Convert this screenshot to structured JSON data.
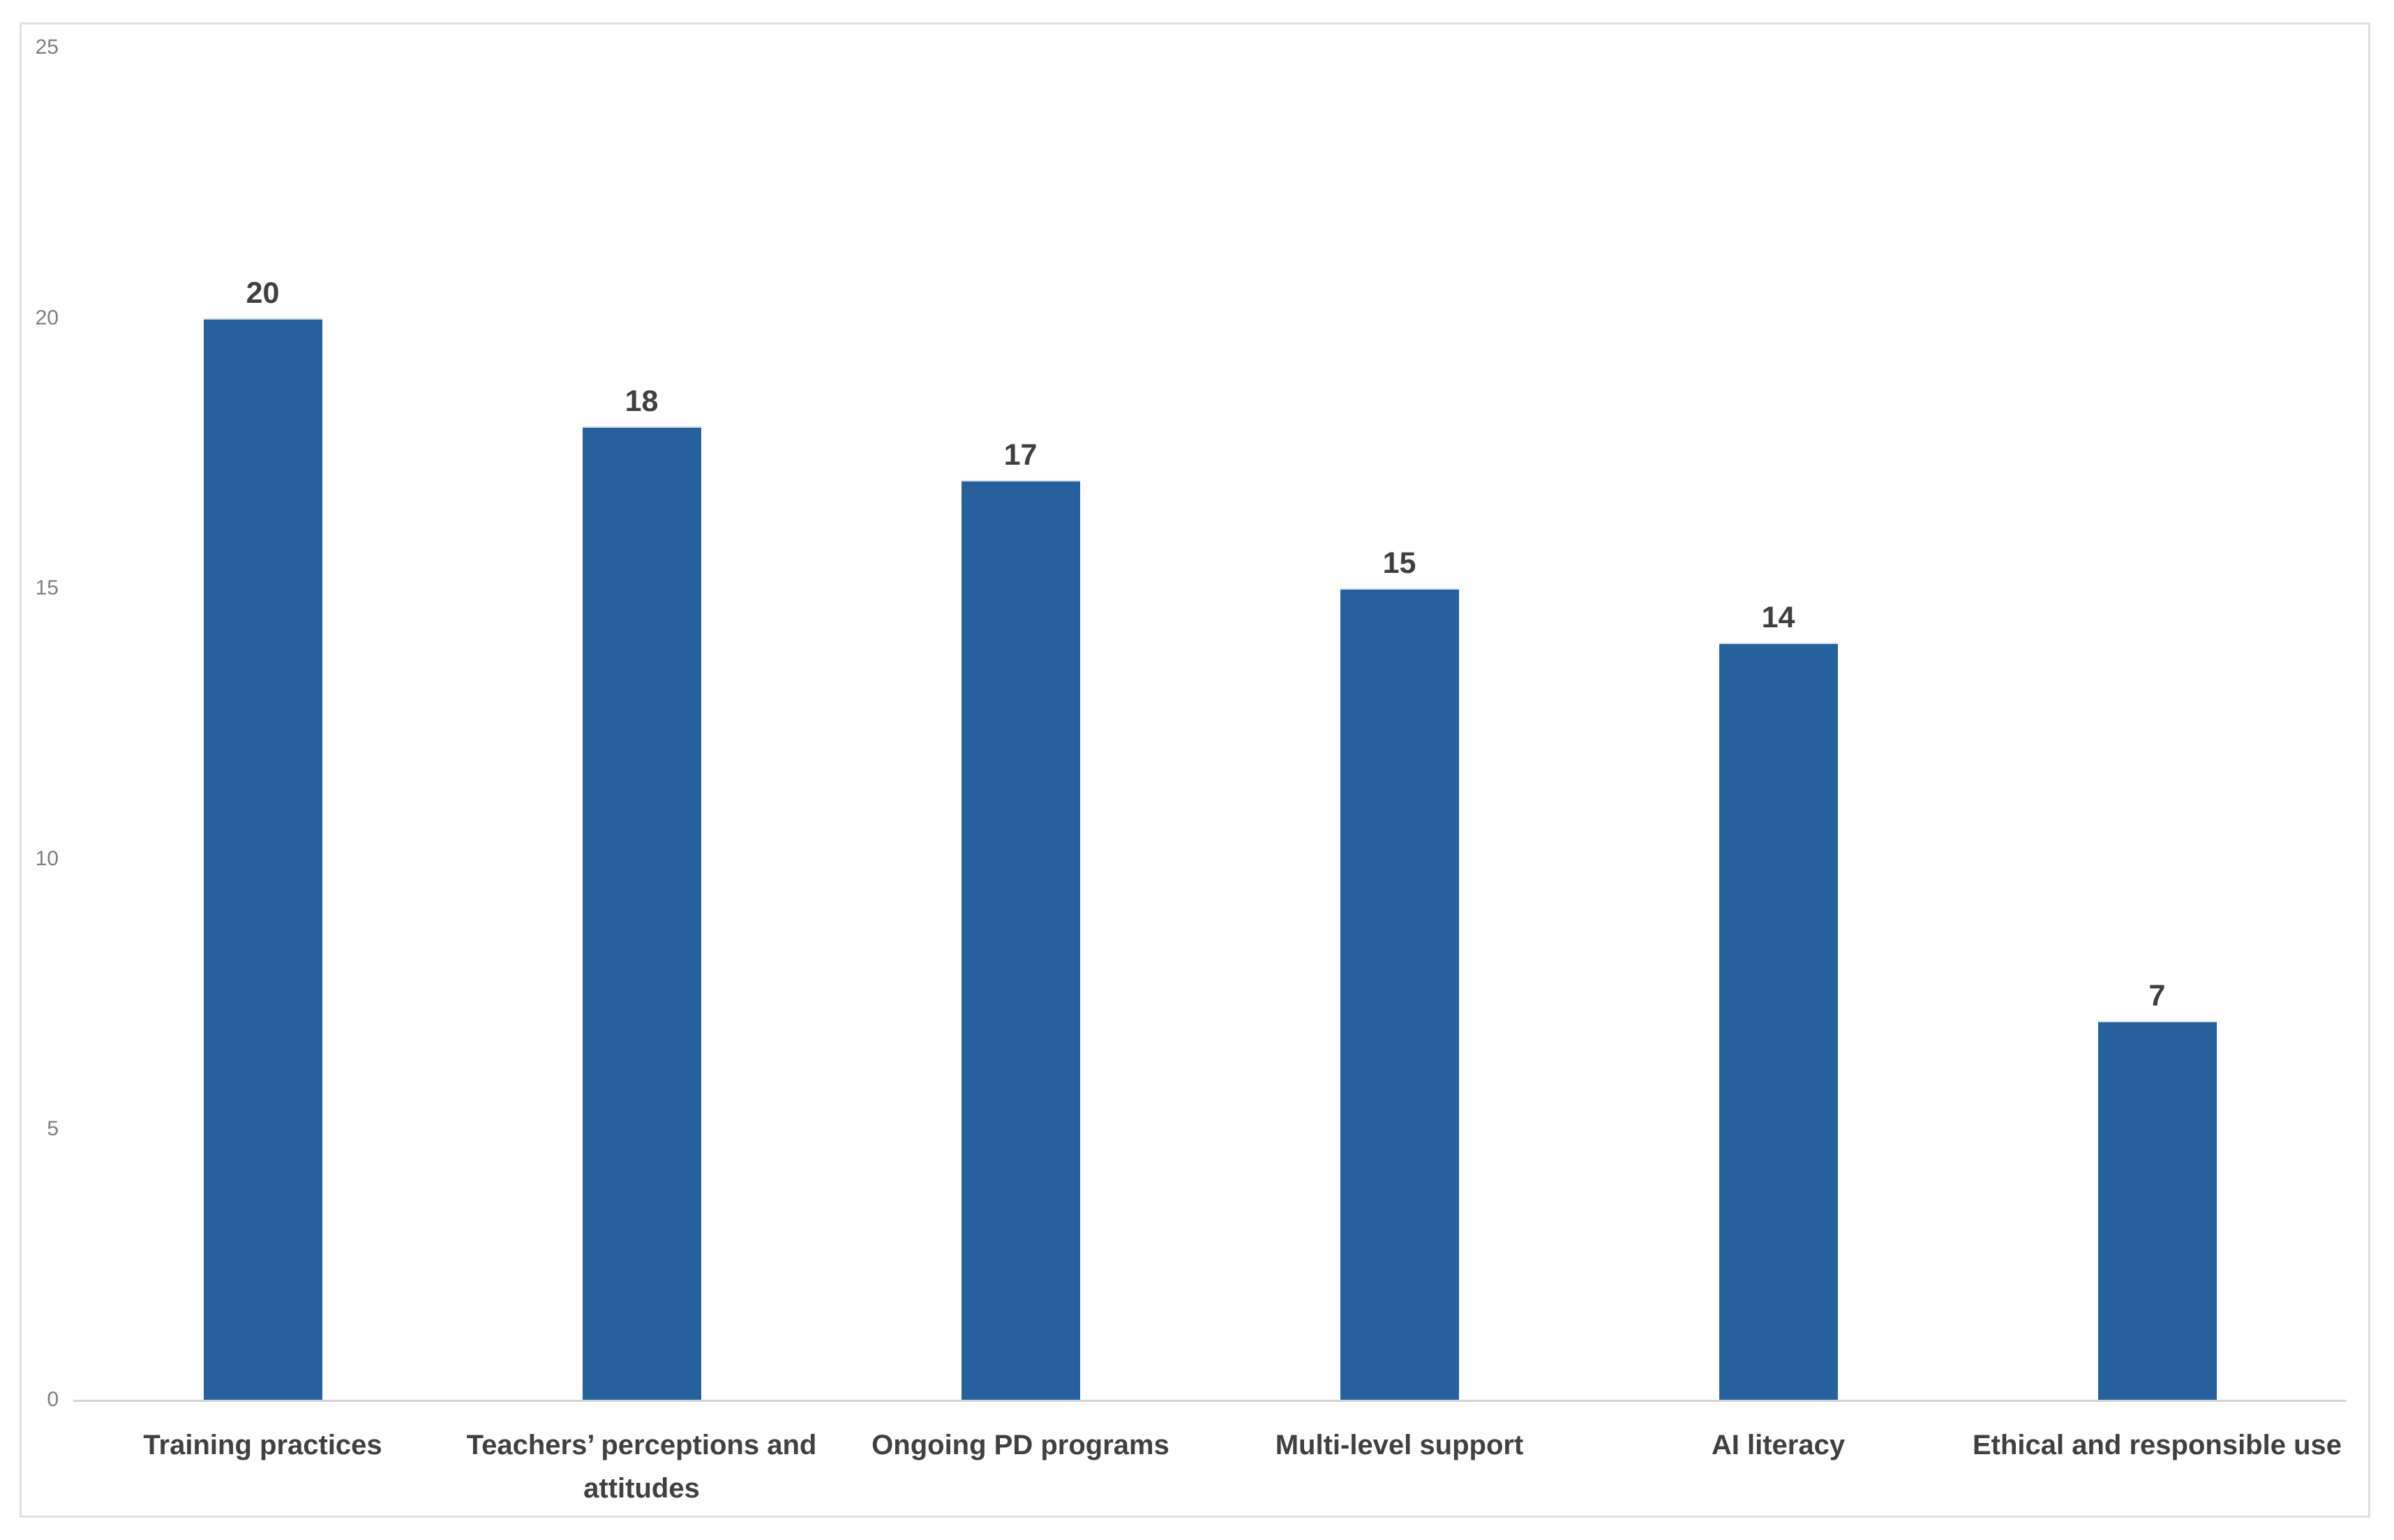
{
  "chart_data": {
    "type": "bar",
    "categories": [
      "Training practices",
      "Teachers’ perceptions and attitudes",
      "Ongoing PD programs",
      "Multi-level support",
      "AI literacy",
      "Ethical and responsible use"
    ],
    "values": [
      20,
      18,
      17,
      15,
      14,
      7
    ],
    "title": "",
    "xlabel": "",
    "ylabel": "",
    "ylim": [
      0,
      25
    ],
    "yticks": [
      0,
      5,
      10,
      15,
      20,
      25
    ],
    "grid": false,
    "legend": false,
    "data_labels_shown": true,
    "colors": {
      "bar": "#26619e",
      "bar_edge": "#d9e2ee",
      "value_label": "#3f3f3f",
      "category_label": "#404040",
      "axis_tick_label": "#7f7f7f",
      "axis_line": "#d6d6d6",
      "frame_border": "#dfdfdf",
      "background": "#ffffff"
    }
  }
}
